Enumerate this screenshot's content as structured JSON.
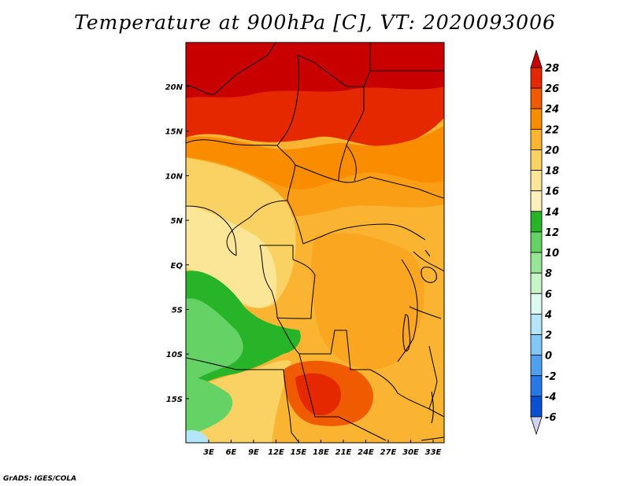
{
  "title": "Temperature at 900hPa [C], VT: 2020093006",
  "credit": "GrADS: IGES/COLA",
  "map": {
    "lon_ticks": [
      "3E",
      "6E",
      "9E",
      "12E",
      "15E",
      "18E",
      "21E",
      "24E",
      "27E",
      "30E",
      "33E"
    ],
    "lat_ticks": [
      "20N",
      "15N",
      "10N",
      "5N",
      "EQ",
      "5S",
      "10S",
      "15S"
    ]
  },
  "colorbar": {
    "labels": [
      "28",
      "26",
      "24",
      "22",
      "20",
      "18",
      "16",
      "14",
      "12",
      "10",
      "8",
      "6",
      "4",
      "2",
      "0",
      "-2",
      "-4",
      "-6"
    ],
    "colors": [
      "#c80000",
      "#e62800",
      "#f05a00",
      "#fa8c00",
      "#fab432",
      "#fad264",
      "#fae696",
      "#fff0be",
      "#28b428",
      "#64d264",
      "#96e696",
      "#c8f5c8",
      "#dcfaf0",
      "#b4e6fa",
      "#82c8f5",
      "#50a0f0",
      "#2878e6",
      "#0a50d2",
      "#0032aa",
      "#000a64"
    ],
    "top_color": "#c80000",
    "bottom_color": "#d2d2f5"
  }
}
